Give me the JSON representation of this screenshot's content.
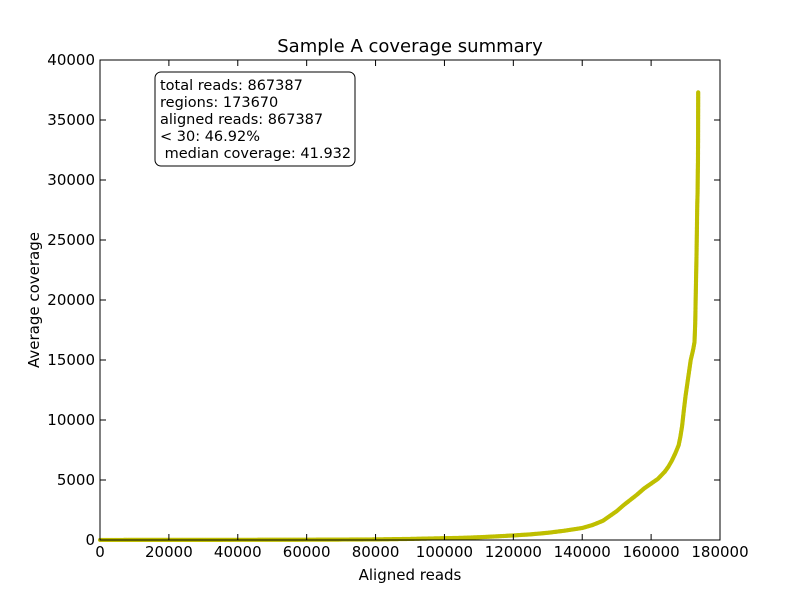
{
  "chart_data": {
    "type": "line",
    "title": "Sample A coverage summary",
    "xlabel": "Aligned reads",
    "ylabel": "Average coverage",
    "xlim": [
      0,
      180000
    ],
    "ylim": [
      0,
      40000
    ],
    "x_ticks": [
      0,
      20000,
      40000,
      60000,
      80000,
      100000,
      120000,
      140000,
      160000,
      180000
    ],
    "y_ticks": [
      0,
      5000,
      10000,
      15000,
      20000,
      25000,
      30000,
      35000,
      40000
    ],
    "grid": false,
    "marker": "dot",
    "series_color": "#bfbf00",
    "annotation_lines": [
      "total reads: 867387",
      "regions: 173670",
      "aligned reads: 867387",
      "< 30: 46.92%",
      " median coverage: 41.932"
    ],
    "series": [
      {
        "x": [
          0,
          10000,
          20000,
          30000,
          40000,
          50000,
          60000,
          70000,
          80000,
          85000,
          90000,
          95000,
          100000,
          105000,
          110000,
          115000,
          120000,
          125000,
          130000,
          135000,
          140000,
          143000,
          146000,
          148000,
          150000,
          152000,
          154000,
          156000,
          158000,
          160000,
          162000,
          164000,
          165000,
          166000,
          167000,
          168000,
          168500,
          169000,
          169500,
          170000,
          170500,
          171000,
          171500,
          172000,
          172300,
          172600,
          172800,
          173000,
          173200,
          173400,
          173500,
          173550,
          173600,
          173620,
          173640,
          173650,
          173660,
          173670
        ],
        "values": [
          5,
          8,
          10,
          12,
          15,
          20,
          25,
          35,
          50,
          70,
          90,
          120,
          150,
          180,
          230,
          300,
          380,
          470,
          600,
          780,
          1000,
          1250,
          1600,
          2000,
          2400,
          2900,
          3350,
          3800,
          4300,
          4700,
          5100,
          5700,
          6100,
          6600,
          7200,
          7900,
          8600,
          9500,
          10800,
          12000,
          13000,
          14000,
          15000,
          15600,
          16000,
          16500,
          18000,
          21000,
          24000,
          28000,
          29000,
          30500,
          31500,
          32500,
          33500,
          35000,
          36000,
          37300
        ]
      }
    ]
  }
}
